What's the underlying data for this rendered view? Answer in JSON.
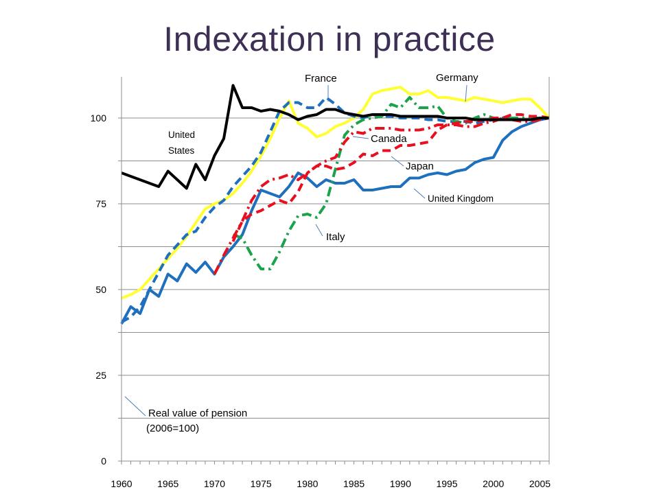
{
  "slide": {
    "title": "Indexation in practice"
  },
  "chart_data": {
    "type": "line",
    "xlim": [
      1960,
      2006
    ],
    "ylim": [
      0,
      112
    ],
    "yticks": [
      0,
      25,
      50,
      75,
      100
    ],
    "xticks": [
      1960,
      1965,
      1970,
      1975,
      1980,
      1985,
      1990,
      1995,
      2000,
      2005
    ],
    "grid": "horizontal",
    "annotations": {
      "france": "France",
      "germany": "Germany",
      "united_states_1": "United",
      "united_states_2": "States",
      "canada": "Canada",
      "japan": "Japan",
      "united_kingdom": "United Kingdom",
      "italy": "Italy",
      "real_value": "Real value of pension",
      "base": "(2006=100)"
    },
    "series": [
      {
        "name": "Germany",
        "color": "#ffff33",
        "dash": "solid",
        "x": [
          1960,
          1961,
          1962,
          1963,
          1964,
          1965,
          1966,
          1967,
          1968,
          1969,
          1970,
          1971,
          1972,
          1973,
          1974,
          1975,
          1976,
          1977,
          1978,
          1979,
          1980,
          1981,
          1982,
          1983,
          1984,
          1985,
          1986,
          1987,
          1988,
          1989,
          1990,
          1991,
          1992,
          1993,
          1994,
          1995,
          1996,
          1997,
          1998,
          1999,
          2000,
          2001,
          2002,
          2003,
          2004,
          2005,
          2006
        ],
        "y": [
          47.5,
          48.5,
          50,
          53,
          56,
          59,
          62,
          65.5,
          69.5,
          73.5,
          75,
          76,
          78,
          81,
          84.5,
          89,
          94,
          100,
          105,
          98.5,
          97,
          94.5,
          95.5,
          97.5,
          98.5,
          100,
          102.5,
          107,
          108,
          108.5,
          109,
          107,
          107,
          108,
          106,
          106,
          105.5,
          105,
          106,
          105.5,
          105,
          104.5,
          105,
          105.5,
          105.5,
          103,
          100
        ]
      },
      {
        "name": "France",
        "color": "#1f6fbf",
        "dash": "dash",
        "x": [
          1960,
          1961,
          1962,
          1963,
          1964,
          1965,
          1966,
          1967,
          1968,
          1969,
          1970,
          1971,
          1972,
          1973,
          1974,
          1975,
          1976,
          1977,
          1978,
          1979,
          1980,
          1981,
          1982,
          1983,
          1984,
          1985,
          1986,
          1987,
          1988,
          1989,
          1990,
          1991,
          1992,
          1993,
          1994,
          1995,
          1996,
          1997,
          1998,
          1999,
          2000,
          2001,
          2002,
          2003,
          2004,
          2005,
          2006
        ],
        "y": [
          40.5,
          42,
          45,
          50,
          55,
          60,
          63,
          66,
          67,
          71,
          74,
          76,
          80,
          83,
          86,
          90,
          96,
          102,
          104.5,
          104.5,
          103,
          103,
          106,
          104,
          101.5,
          100.5,
          100,
          101,
          100.5,
          100.5,
          100,
          100,
          100,
          99.5,
          99.5,
          99,
          99,
          99,
          98.5,
          99,
          99.5,
          100,
          100,
          99.5,
          99.5,
          99.5,
          100
        ]
      },
      {
        "name": "United Kingdom",
        "color": "#1f6fbf",
        "dash": "solid",
        "x": [
          1960,
          1961,
          1962,
          1963,
          1964,
          1965,
          1966,
          1967,
          1968,
          1969,
          1970,
          1971,
          1972,
          1973,
          1974,
          1975,
          1976,
          1977,
          1978,
          1979,
          1980,
          1981,
          1982,
          1983,
          1984,
          1985,
          1986,
          1987,
          1988,
          1989,
          1990,
          1991,
          1992,
          1993,
          1994,
          1995,
          1996,
          1997,
          1998,
          1999,
          2000,
          2001,
          2002,
          2003,
          2004,
          2005,
          2006
        ],
        "y": [
          40,
          45,
          43,
          50,
          48,
          54.5,
          52.5,
          57.5,
          55,
          58,
          54.5,
          59.5,
          62.5,
          66,
          73,
          79,
          78,
          77,
          80,
          84,
          82.5,
          80,
          82,
          81,
          81,
          82,
          79,
          79,
          79.5,
          80,
          80,
          82.5,
          82.5,
          83.5,
          84,
          83.5,
          84.5,
          85,
          87,
          88,
          88.5,
          93.5,
          96,
          97.5,
          98.5,
          99.5,
          100
        ]
      },
      {
        "name": "Italy",
        "color": "#1aa34a",
        "dash": "dashdot",
        "x": [
          1972,
          1973,
          1974,
          1975,
          1976,
          1977,
          1978,
          1979,
          1980,
          1981,
          1982,
          1983,
          1984,
          1985,
          1986,
          1987,
          1988,
          1989,
          1990,
          1991,
          1992,
          1993,
          1994,
          1995,
          1996,
          1997,
          1998,
          1999,
          2000,
          2001,
          2002,
          2003,
          2004,
          2005,
          2006
        ],
        "y": [
          66,
          65,
          60,
          56,
          56,
          61,
          67,
          71.5,
          72,
          71,
          75,
          85,
          95,
          98,
          99.5,
          100,
          100.5,
          104,
          103,
          106,
          103,
          103,
          103.5,
          100,
          99,
          98.5,
          100,
          101,
          100,
          99.5,
          100,
          100,
          100,
          100,
          100
        ]
      },
      {
        "name": "Canada",
        "color": "#e8101f",
        "dash": "dashdot",
        "x": [
          1970,
          1971,
          1972,
          1973,
          1974,
          1975,
          1976,
          1977,
          1978,
          1979,
          1980,
          1981,
          1982,
          1983,
          1984,
          1985,
          1986,
          1987,
          1988,
          1989,
          1990,
          1991,
          1992,
          1993,
          1994,
          1995,
          1996,
          1997,
          1998,
          1999,
          2000,
          2001,
          2002,
          2003,
          2004,
          2005,
          2006
        ],
        "y": [
          54.5,
          60,
          65,
          70,
          76,
          80,
          82,
          82.5,
          83.5,
          82,
          84,
          86,
          87.5,
          88.5,
          93,
          96,
          95.5,
          97,
          97,
          97,
          96.5,
          96.5,
          96.5,
          97,
          98,
          98,
          98,
          97.5,
          97.5,
          98.5,
          99,
          100,
          99.5,
          99,
          99,
          99.5,
          100
        ]
      },
      {
        "name": "Japan",
        "color": "#e8101f",
        "dash": "dash",
        "x": [
          1972,
          1973,
          1974,
          1975,
          1976,
          1977,
          1978,
          1979,
          1980,
          1981,
          1982,
          1983,
          1984,
          1985,
          1986,
          1987,
          1988,
          1989,
          1990,
          1991,
          1992,
          1993,
          1994,
          1995,
          1996,
          1997,
          1998,
          1999,
          2000,
          2001,
          2002,
          2003,
          2004,
          2005,
          2006
        ],
        "y": [
          64,
          70,
          72,
          73,
          74.5,
          76,
          75,
          78.5,
          84,
          86,
          86,
          85,
          85.5,
          87,
          89.5,
          89,
          90.5,
          90.5,
          92,
          92,
          92.5,
          93,
          96.5,
          98,
          98.5,
          99,
          99,
          99.5,
          100,
          100,
          101,
          101,
          100.5,
          100.5,
          100
        ]
      },
      {
        "name": "United States",
        "color": "#000000",
        "dash": "solid",
        "x": [
          1960,
          1961,
          1962,
          1963,
          1964,
          1965,
          1966,
          1967,
          1968,
          1969,
          1970,
          1971,
          1972,
          1973,
          1974,
          1975,
          1976,
          1977,
          1978,
          1979,
          1980,
          1981,
          1982,
          1983,
          1984,
          1985,
          1986,
          1987,
          1988,
          1989,
          1990,
          1991,
          1992,
          1993,
          1994,
          1995,
          1996,
          1997,
          1998,
          1999,
          2000,
          2001,
          2002,
          2003,
          2004,
          2005,
          2006
        ],
        "y": [
          84,
          83,
          82,
          81,
          80,
          84.5,
          82,
          79.5,
          86.5,
          82,
          89,
          94,
          109.5,
          103,
          103,
          102,
          102.5,
          102,
          101,
          99.5,
          100.5,
          101,
          102.5,
          102.5,
          101.5,
          101,
          100.5,
          101,
          101,
          101,
          100.5,
          100.5,
          100.5,
          100.5,
          100.5,
          100,
          100,
          100,
          99.5,
          99.5,
          99.5,
          99.5,
          99.5,
          99.5,
          99.5,
          100,
          100
        ]
      }
    ]
  }
}
